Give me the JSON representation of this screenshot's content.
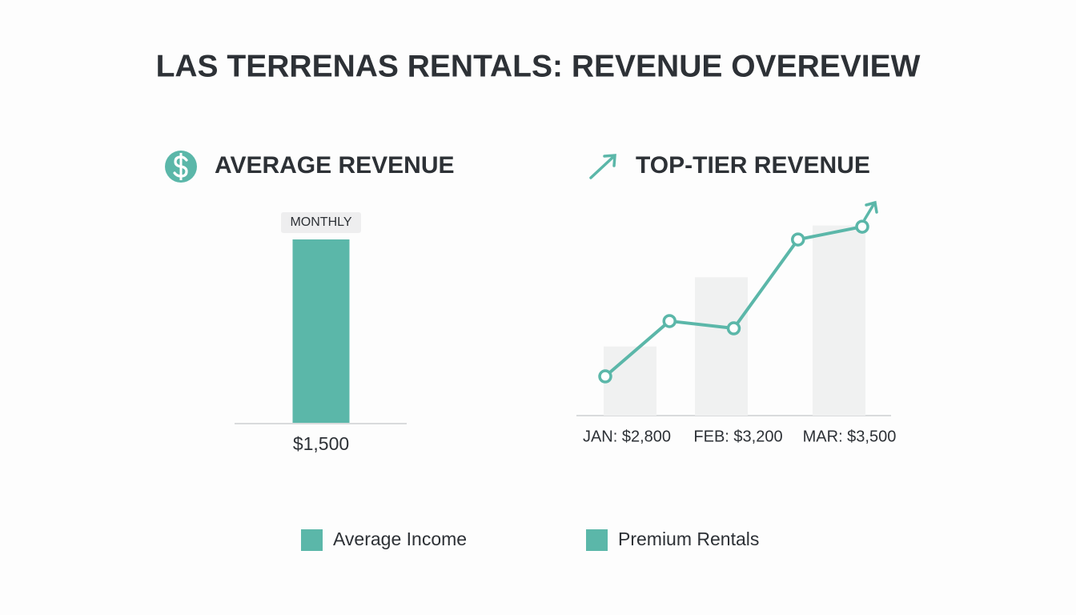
{
  "title": "LAS TERRENAS RENTALS: REVENUE OVEREVIEW",
  "legend": [
    {
      "name": "Average Income",
      "color": "#5bb7a9"
    },
    {
      "name": "Premium Rentals",
      "color": "#5bb7a9"
    }
  ],
  "chart_data": [
    {
      "type": "bar",
      "title": "AVERAGE REVENUE",
      "categories": [
        "MONTHLY"
      ],
      "values": [
        1500
      ],
      "value_labels": [
        "$1,500"
      ],
      "color": "#5bb7a9",
      "ylim": [
        0,
        1500
      ]
    },
    {
      "type": "bar",
      "title": "TOP-TIER REVENUE",
      "categories": [
        "JAN: $2,800",
        "FEB: $3,200",
        "MAR: $3,500"
      ],
      "values": [
        2800,
        3200,
        3500
      ],
      "color": "#f0f1f1",
      "ylim": [
        2400,
        3600
      ]
    },
    {
      "type": "line",
      "categories": [
        null,
        null,
        null,
        null,
        null
      ],
      "values": [
        2627,
        2947,
        2905,
        3419,
        3493
      ],
      "color": "#5bb7a9",
      "ylim": [
        2400,
        3600
      ]
    }
  ]
}
